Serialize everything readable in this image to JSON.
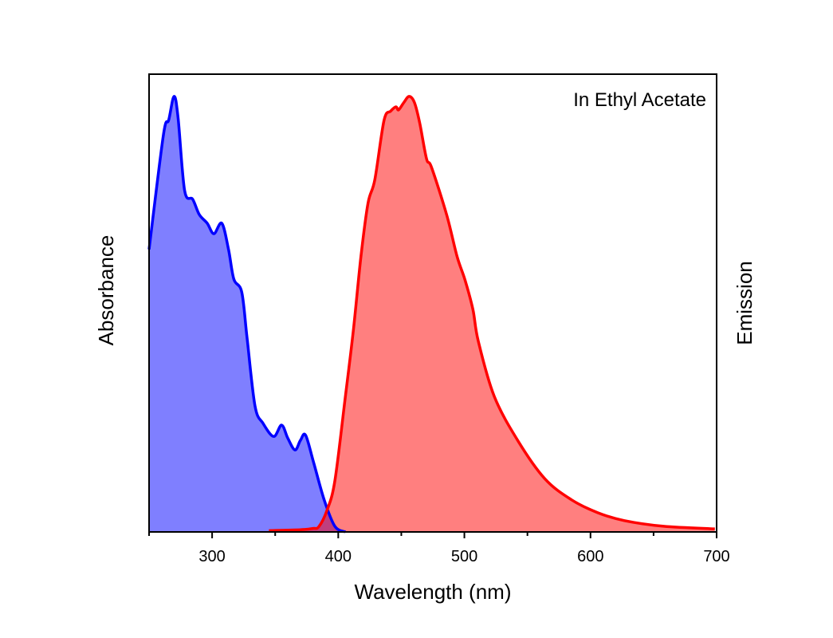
{
  "chart_data": {
    "type": "area",
    "title": "",
    "annotation": "In Ethyl Acetate",
    "xlabel": "Wavelength (nm)",
    "ylabel_left": "Absorbance",
    "ylabel_right": "Emission",
    "xlim": [
      250,
      700
    ],
    "ylim": [
      0,
      1.05
    ],
    "x_ticks": [
      300,
      400,
      500,
      600,
      700
    ],
    "x_minor_ticks": [
      250,
      350,
      450,
      550,
      650
    ],
    "grid": false,
    "colors": {
      "absorbance": "#0000ff",
      "emission": "#ff0000"
    },
    "series": [
      {
        "name": "Absorbance",
        "axis": "left",
        "x": [
          250,
          261.4,
          265.6,
          269.8,
          273,
          278.2,
          284.6,
          289.8,
          296.1,
          301.4,
          307.7,
          313,
          317.2,
          323.5,
          327.7,
          334,
          340.4,
          348.8,
          355.1,
          360,
          365.7,
          370,
          374.1,
          380.4,
          388.9,
          397.3,
          405.7
        ],
        "y": [
          0.648,
          0.911,
          0.945,
          0.999,
          0.95,
          0.783,
          0.763,
          0.728,
          0.708,
          0.684,
          0.708,
          0.648,
          0.58,
          0.55,
          0.445,
          0.289,
          0.249,
          0.219,
          0.245,
          0.215,
          0.188,
          0.21,
          0.222,
          0.16,
          0.073,
          0.013,
          0
        ]
      },
      {
        "name": "Emission",
        "axis": "right",
        "x": [
          345,
          370,
          380,
          384.6,
          391,
          397.3,
          405.5,
          412,
          418,
          423.6,
          429,
          436.3,
          441.5,
          445.8,
          447.8,
          452,
          456.2,
          460.4,
          464.6,
          470,
          474,
          486,
          494.2,
          500.5,
          506.8,
          511,
          523.7,
          542.7,
          563.8,
          584.8,
          605.9,
          626.8,
          658,
          698.6
        ],
        "y": [
          0.003,
          0.005,
          0.008,
          0.012,
          0.049,
          0.117,
          0.307,
          0.463,
          0.632,
          0.754,
          0.808,
          0.944,
          0.965,
          0.975,
          0.968,
          0.985,
          0.999,
          0.985,
          0.938,
          0.856,
          0.836,
          0.727,
          0.632,
          0.578,
          0.51,
          0.438,
          0.311,
          0.208,
          0.122,
          0.074,
          0.044,
          0.026,
          0.013,
          0.007
        ]
      }
    ]
  }
}
